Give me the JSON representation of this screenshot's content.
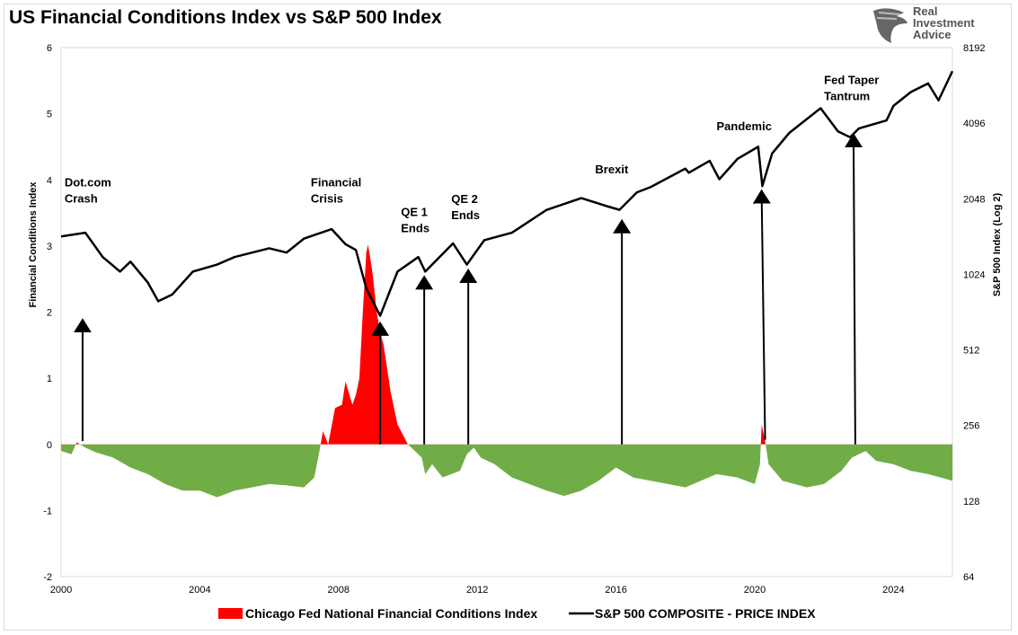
{
  "title": "US Financial Conditions Index vs S&P 500 Index",
  "logo": {
    "lines": [
      "Real",
      "Investment",
      "Advice"
    ]
  },
  "chart_data": {
    "type": "area+line",
    "title": "US Financial Conditions Index vs S&P 500 Index",
    "x_ticks": [
      "2000",
      "2004",
      "2008",
      "2012",
      "2016",
      "2020",
      "2024"
    ],
    "x_range": [
      2000,
      2025.7
    ],
    "y_left": {
      "label": "Financial Conditions Index",
      "range": [
        -2,
        6
      ],
      "ticks": [
        "-2",
        "-1",
        "0",
        "1",
        "2",
        "3",
        "4",
        "5",
        "6"
      ]
    },
    "y_right": {
      "label": "S&P 500 Index (Log 2)",
      "scale": "log2",
      "range": [
        64,
        8192
      ],
      "ticks": [
        "64",
        "128",
        "256",
        "512",
        "1024",
        "2048",
        "4096",
        "8192"
      ]
    },
    "colors": {
      "positive": "#ff0000",
      "negative": "#70ad47",
      "spx": "#000000"
    },
    "legend": {
      "placement": "bottom",
      "entries": [
        "Chicago Fed National Financial Conditions Index",
        "S&P 500 COMPOSITE - PRICE INDEX"
      ]
    },
    "nfci": [
      [
        2000.0,
        -0.1
      ],
      [
        2000.3,
        -0.15
      ],
      [
        2000.45,
        0.03
      ],
      [
        2000.7,
        -0.05
      ],
      [
        2001.0,
        -0.12
      ],
      [
        2001.5,
        -0.2
      ],
      [
        2002.0,
        -0.35
      ],
      [
        2002.5,
        -0.45
      ],
      [
        2003.0,
        -0.6
      ],
      [
        2003.5,
        -0.7
      ],
      [
        2004.0,
        -0.7
      ],
      [
        2004.5,
        -0.8
      ],
      [
        2005.0,
        -0.7
      ],
      [
        2005.5,
        -0.65
      ],
      [
        2006.0,
        -0.6
      ],
      [
        2006.5,
        -0.62
      ],
      [
        2007.0,
        -0.65
      ],
      [
        2007.3,
        -0.5
      ],
      [
        2007.45,
        -0.1
      ],
      [
        2007.55,
        0.2
      ],
      [
        2007.7,
        0.0
      ],
      [
        2007.9,
        0.55
      ],
      [
        2008.1,
        0.6
      ],
      [
        2008.2,
        0.95
      ],
      [
        2008.4,
        0.6
      ],
      [
        2008.5,
        0.75
      ],
      [
        2008.6,
        1.0
      ],
      [
        2008.7,
        2.0
      ],
      [
        2008.8,
        2.9
      ],
      [
        2008.85,
        3.02
      ],
      [
        2008.95,
        2.7
      ],
      [
        2009.0,
        2.5
      ],
      [
        2009.1,
        2.0
      ],
      [
        2009.2,
        1.7
      ],
      [
        2009.3,
        1.5
      ],
      [
        2009.5,
        0.8
      ],
      [
        2009.7,
        0.3
      ],
      [
        2010.0,
        0.0
      ],
      [
        2010.2,
        -0.1
      ],
      [
        2010.4,
        -0.2
      ],
      [
        2010.5,
        -0.45
      ],
      [
        2010.7,
        -0.3
      ],
      [
        2011.0,
        -0.5
      ],
      [
        2011.5,
        -0.4
      ],
      [
        2011.7,
        -0.15
      ],
      [
        2011.9,
        -0.05
      ],
      [
        2012.1,
        -0.2
      ],
      [
        2012.5,
        -0.3
      ],
      [
        2013.0,
        -0.5
      ],
      [
        2014.0,
        -0.7
      ],
      [
        2014.5,
        -0.78
      ],
      [
        2015.0,
        -0.7
      ],
      [
        2015.5,
        -0.55
      ],
      [
        2016.0,
        -0.35
      ],
      [
        2016.5,
        -0.5
      ],
      [
        2017.0,
        -0.55
      ],
      [
        2018.0,
        -0.65
      ],
      [
        2018.9,
        -0.45
      ],
      [
        2019.5,
        -0.5
      ],
      [
        2020.0,
        -0.6
      ],
      [
        2020.15,
        -0.3
      ],
      [
        2020.2,
        0.3
      ],
      [
        2020.3,
        0.05
      ],
      [
        2020.4,
        -0.3
      ],
      [
        2020.8,
        -0.55
      ],
      [
        2021.5,
        -0.65
      ],
      [
        2022.0,
        -0.6
      ],
      [
        2022.5,
        -0.4
      ],
      [
        2022.8,
        -0.2
      ],
      [
        2023.2,
        -0.1
      ],
      [
        2023.5,
        -0.25
      ],
      [
        2024.0,
        -0.3
      ],
      [
        2024.5,
        -0.4
      ],
      [
        2025.0,
        -0.45
      ],
      [
        2025.7,
        -0.55
      ]
    ],
    "spx": [
      [
        2000.0,
        1450
      ],
      [
        2000.7,
        1500
      ],
      [
        2001.2,
        1200
      ],
      [
        2001.7,
        1050
      ],
      [
        2002.0,
        1150
      ],
      [
        2002.5,
        950
      ],
      [
        2002.8,
        800
      ],
      [
        2003.2,
        850
      ],
      [
        2003.8,
        1050
      ],
      [
        2004.5,
        1120
      ],
      [
        2005.0,
        1200
      ],
      [
        2006.0,
        1300
      ],
      [
        2006.5,
        1250
      ],
      [
        2007.0,
        1420
      ],
      [
        2007.8,
        1550
      ],
      [
        2008.2,
        1350
      ],
      [
        2008.5,
        1280
      ],
      [
        2008.8,
        900
      ],
      [
        2009.2,
        700
      ],
      [
        2009.7,
        1050
      ],
      [
        2010.3,
        1200
      ],
      [
        2010.5,
        1050
      ],
      [
        2011.3,
        1360
      ],
      [
        2011.7,
        1120
      ],
      [
        2012.2,
        1400
      ],
      [
        2013.0,
        1500
      ],
      [
        2014.0,
        1850
      ],
      [
        2015.0,
        2060
      ],
      [
        2015.7,
        1920
      ],
      [
        2016.1,
        1850
      ],
      [
        2016.6,
        2170
      ],
      [
        2017.0,
        2280
      ],
      [
        2018.0,
        2700
      ],
      [
        2018.1,
        2600
      ],
      [
        2018.7,
        2900
      ],
      [
        2018.98,
        2450
      ],
      [
        2019.5,
        2950
      ],
      [
        2020.1,
        3300
      ],
      [
        2020.22,
        2300
      ],
      [
        2020.5,
        3100
      ],
      [
        2021.0,
        3750
      ],
      [
        2021.9,
        4700
      ],
      [
        2022.4,
        3800
      ],
      [
        2022.75,
        3600
      ],
      [
        2023.0,
        3900
      ],
      [
        2023.8,
        4200
      ],
      [
        2024.0,
        4800
      ],
      [
        2024.5,
        5450
      ],
      [
        2025.0,
        5900
      ],
      [
        2025.3,
        5050
      ],
      [
        2025.7,
        6600
      ]
    ],
    "annotations": [
      {
        "lines": [
          "Dot.com",
          "Crash"
        ],
        "label_at": [
          2000.1,
          3.9
        ],
        "arrow_from": [
          2000.62,
          0.05
        ],
        "arrow_to": [
          2000.62,
          1.8
        ]
      },
      {
        "lines": [
          "Financial",
          "Crisis"
        ],
        "label_at": [
          2007.2,
          3.9
        ],
        "arrow_from": [
          2009.2,
          0
        ],
        "arrow_to": [
          2009.2,
          1.75
        ]
      },
      {
        "lines": [
          "QE 1",
          "Ends"
        ],
        "label_at": [
          2009.8,
          3.45
        ],
        "arrow_from": [
          2010.47,
          0
        ],
        "arrow_to": [
          2010.47,
          2.45
        ]
      },
      {
        "lines": [
          "QE 2",
          "Ends"
        ],
        "label_at": [
          2011.25,
          3.65
        ],
        "arrow_from": [
          2011.74,
          0
        ],
        "arrow_to": [
          2011.74,
          2.55
        ]
      },
      {
        "lines": [
          "Brexit"
        ],
        "label_at": [
          2015.4,
          4.1
        ],
        "arrow_from": [
          2016.17,
          0
        ],
        "arrow_to": [
          2016.17,
          3.3
        ]
      },
      {
        "lines": [
          "Pandemic"
        ],
        "label_at": [
          2018.9,
          4.75
        ],
        "arrow_from": [
          2020.3,
          0.07
        ],
        "arrow_to": [
          2020.2,
          3.75
        ]
      },
      {
        "lines": [
          "Fed Taper",
          "Tantrum"
        ],
        "label_at": [
          2022.0,
          5.45
        ],
        "arrow_from": [
          2022.9,
          0
        ],
        "arrow_to": [
          2022.85,
          4.6
        ]
      }
    ]
  }
}
